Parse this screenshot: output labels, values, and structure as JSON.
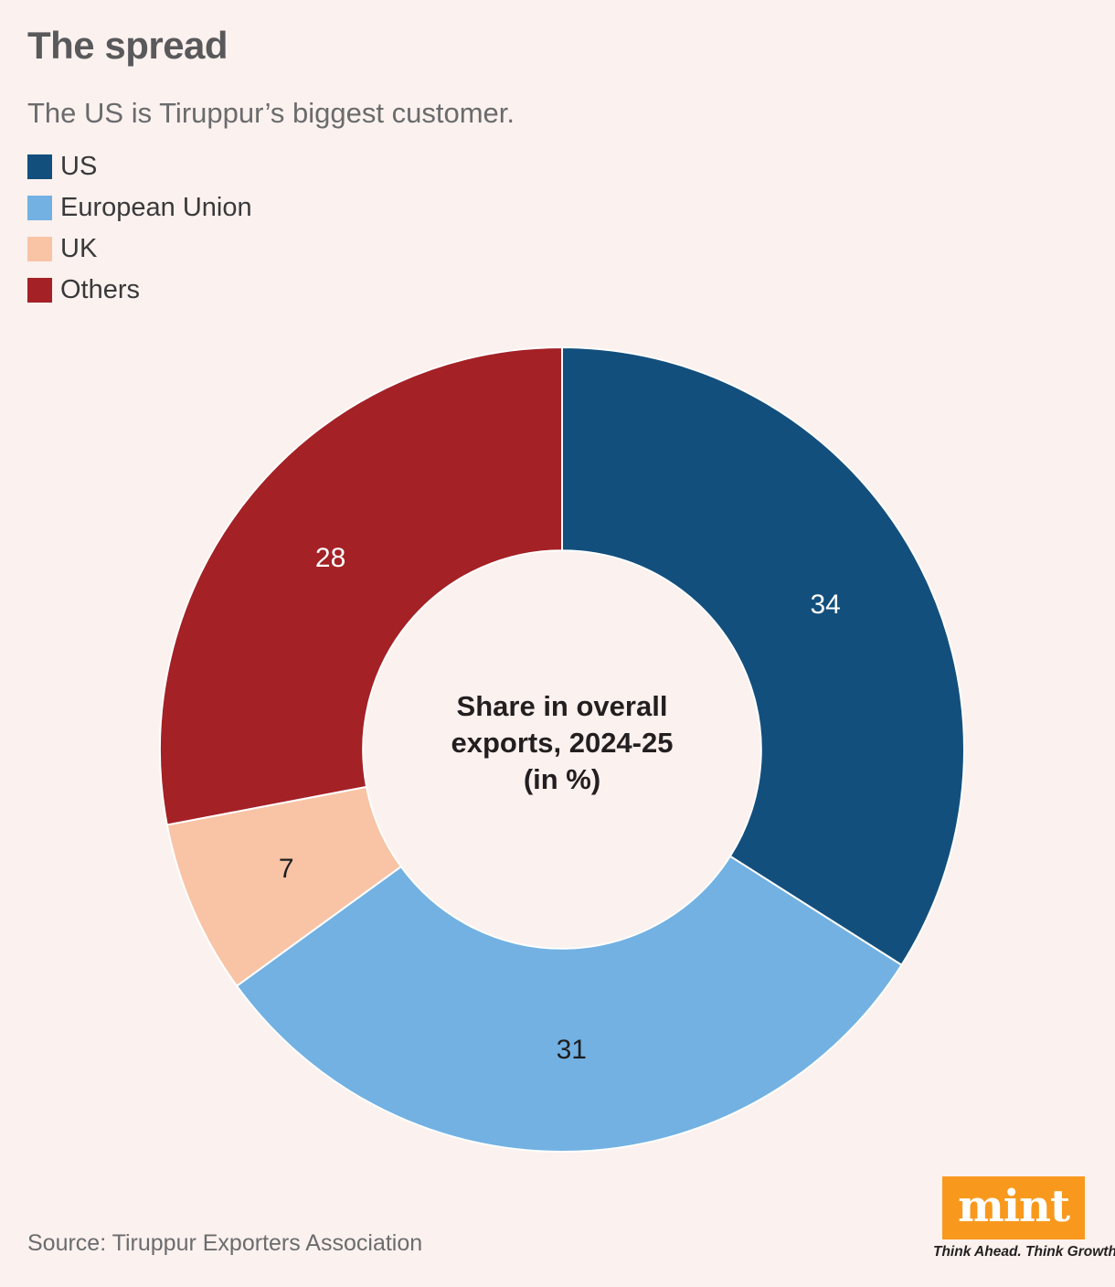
{
  "page": {
    "background": "#fbf1ee"
  },
  "header": {
    "title": "The spread",
    "subtitle": "The US is Tiruppur’s biggest customer."
  },
  "legend": {
    "items": [
      {
        "label": "US",
        "color": "#134f7d"
      },
      {
        "label": "European Union",
        "color": "#72b1e2"
      },
      {
        "label": "UK",
        "color": "#f8c4a5"
      },
      {
        "label": "Others",
        "color": "#a42126"
      }
    ]
  },
  "chart_data": {
    "type": "pie",
    "subtype": "donut",
    "title": "Share in overall exports, 2024-25 (in %)",
    "center_label": {
      "line1": "Share in overall",
      "line2": "exports, 2024-25",
      "line3": "(in %)"
    },
    "categories": [
      "US",
      "European Union",
      "UK",
      "Others"
    ],
    "values": [
      34,
      31,
      7,
      28
    ],
    "unit": "%",
    "colors": [
      "#134f7d",
      "#72b1e2",
      "#f8c4a5",
      "#a42126"
    ],
    "value_label_colors": [
      "#ffffff",
      "#1d1e20",
      "#1d1e20",
      "#ffffff"
    ],
    "separator_color": "#ffffff",
    "start_angle_deg": 0,
    "direction": "clockwise",
    "inner_radius_ratio": 0.495,
    "legend_position": "top-left"
  },
  "footer": {
    "source": "Source: Tiruppur Exporters Association"
  },
  "branding": {
    "logo_text": "mint",
    "tagline": "Think Ahead. Think Growth.",
    "logo_background": "#f8991d",
    "logo_text_color": "#ffffff"
  }
}
